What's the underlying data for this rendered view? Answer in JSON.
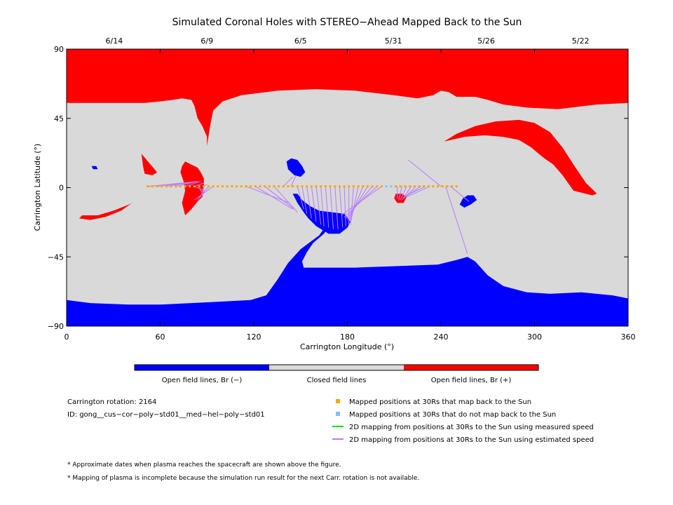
{
  "chart_data": {
    "type": "map",
    "title": "Simulated Coronal Holes with STEREO−Ahead Mapped Back to the Sun",
    "xlabel": "Carrington Longitude (°)",
    "ylabel": "Carrington Latitude (°)",
    "xlim": [
      0,
      360
    ],
    "ylim": [
      -90,
      90
    ],
    "x_ticks": [
      {
        "value": 0,
        "label": "0"
      },
      {
        "value": 60,
        "label": "60"
      },
      {
        "value": 120,
        "label": "120"
      },
      {
        "value": 180,
        "label": "180"
      },
      {
        "value": 240,
        "label": "240"
      },
      {
        "value": 300,
        "label": "300"
      },
      {
        "value": 360,
        "label": "360"
      }
    ],
    "y_ticks": [
      {
        "value": 90,
        "label": "90"
      },
      {
        "value": 45,
        "label": "45"
      },
      {
        "value": 0,
        "label": "0"
      },
      {
        "value": -45,
        "label": "−45"
      },
      {
        "value": -90,
        "label": "−90"
      }
    ],
    "top_dates": [
      {
        "lon": 30.5,
        "label": "6/14"
      },
      {
        "lon": 90,
        "label": "6/9"
      },
      {
        "lon": 150,
        "label": "6/5"
      },
      {
        "lon": 209.5,
        "label": "5/31"
      },
      {
        "lon": 269,
        "label": "5/26"
      },
      {
        "lon": 329.5,
        "label": "5/22"
      }
    ],
    "colors": {
      "open_negative": "#0000ff",
      "closed": "#d9d9d9",
      "open_positive": "#ff0000",
      "mapped": "#ffa500",
      "unmapped": "#80c0ff",
      "measured_speed": "#00e000",
      "estimated_speed": "#b57bff"
    },
    "colorbar_labels": [
      "Open field lines, Br (−)",
      "Closed field lines",
      "Open field lines, Br (+)"
    ],
    "regions": {
      "south_polar_negative": [
        [
          0,
          -73
        ],
        [
          15,
          -75
        ],
        [
          40,
          -76
        ],
        [
          60,
          -76
        ],
        [
          80,
          -75
        ],
        [
          100,
          -74
        ],
        [
          118,
          -73
        ],
        [
          128,
          -70
        ],
        [
          135,
          -60
        ],
        [
          142,
          -49
        ],
        [
          150,
          -40
        ],
        [
          162,
          -31
        ],
        [
          166,
          -25
        ],
        [
          169,
          -24
        ],
        [
          165,
          -30
        ],
        [
          158,
          -36
        ],
        [
          154,
          -42
        ],
        [
          151,
          -48
        ],
        [
          152,
          -52
        ],
        [
          166,
          -52
        ],
        [
          185,
          -52
        ],
        [
          212,
          -51
        ],
        [
          238,
          -50
        ],
        [
          250,
          -47
        ],
        [
          257,
          -45
        ],
        [
          262,
          -48
        ],
        [
          270,
          -57
        ],
        [
          280,
          -64
        ],
        [
          295,
          -68
        ],
        [
          310,
          -69
        ],
        [
          330,
          -68
        ],
        [
          350,
          -70
        ],
        [
          360,
          -72
        ],
        [
          360,
          -90
        ],
        [
          0,
          -90
        ]
      ],
      "negative_tongue": [
        [
          145,
          -4
        ],
        [
          148,
          -10
        ],
        [
          152,
          -16
        ],
        [
          155,
          -20
        ],
        [
          160,
          -25
        ],
        [
          168,
          -30
        ],
        [
          175,
          -30
        ],
        [
          180,
          -26
        ],
        [
          182,
          -22
        ],
        [
          178,
          -17
        ],
        [
          170,
          -16
        ],
        [
          162,
          -15
        ],
        [
          156,
          -12
        ],
        [
          151,
          -8
        ],
        [
          148,
          -4
        ]
      ],
      "negative_blob_center": [
        [
          141,
          17
        ],
        [
          144,
          19
        ],
        [
          148,
          18
        ],
        [
          151,
          14
        ],
        [
          153,
          10
        ],
        [
          150,
          7
        ],
        [
          146,
          8
        ],
        [
          142,
          12
        ]
      ],
      "negative_blob_left": [
        [
          16,
          14
        ],
        [
          19,
          14
        ],
        [
          20,
          12
        ],
        [
          17,
          12
        ]
      ],
      "negative_blob_right": [
        [
          254,
          -7
        ],
        [
          257,
          -5
        ],
        [
          261,
          -5
        ],
        [
          263,
          -8
        ],
        [
          259,
          -11
        ],
        [
          255,
          -13
        ],
        [
          252,
          -11
        ]
      ],
      "north_polar_positive": [
        [
          0,
          55
        ],
        [
          25,
          55
        ],
        [
          50,
          55
        ],
        [
          60,
          56
        ],
        [
          68,
          57
        ],
        [
          74,
          58
        ],
        [
          80,
          57
        ],
        [
          82,
          53
        ],
        [
          84,
          45
        ],
        [
          87,
          40
        ],
        [
          90,
          33
        ],
        [
          90,
          27
        ],
        [
          92,
          40
        ],
        [
          94,
          50
        ],
        [
          100,
          56
        ],
        [
          112,
          60
        ],
        [
          135,
          63
        ],
        [
          160,
          64
        ],
        [
          185,
          63
        ],
        [
          210,
          60
        ],
        [
          225,
          58
        ],
        [
          235,
          60
        ],
        [
          240,
          63
        ],
        [
          245,
          62
        ],
        [
          250,
          59
        ],
        [
          262,
          59
        ],
        [
          270,
          57
        ],
        [
          280,
          54
        ],
        [
          295,
          52
        ],
        [
          315,
          51
        ],
        [
          340,
          54
        ],
        [
          360,
          55
        ],
        [
          360,
          90
        ],
        [
          0,
          90
        ]
      ],
      "positive_tongue_right": [
        [
          242,
          30
        ],
        [
          250,
          35
        ],
        [
          262,
          40
        ],
        [
          275,
          43
        ],
        [
          290,
          44
        ],
        [
          300,
          42
        ],
        [
          310,
          36
        ],
        [
          318,
          26
        ],
        [
          325,
          15
        ],
        [
          333,
          3
        ],
        [
          340,
          -4
        ],
        [
          337,
          -5
        ],
        [
          325,
          -2
        ],
        [
          318,
          8
        ],
        [
          312,
          15
        ],
        [
          305,
          20
        ],
        [
          298,
          26
        ],
        [
          290,
          31
        ],
        [
          280,
          33
        ],
        [
          268,
          34
        ],
        [
          255,
          33
        ]
      ],
      "positive_blob_mid": [
        [
          76,
          17
        ],
        [
          80,
          15
        ],
        [
          84,
          13
        ],
        [
          86,
          10
        ],
        [
          88,
          6
        ],
        [
          88,
          0
        ],
        [
          87,
          -6
        ],
        [
          84,
          -9
        ],
        [
          80,
          -14
        ],
        [
          76,
          -18
        ],
        [
          74,
          -10
        ],
        [
          76,
          -2
        ],
        [
          75,
          4
        ],
        [
          73,
          10
        ],
        [
          74,
          14
        ]
      ],
      "positive_patch_left": [
        [
          48,
          22
        ],
        [
          53,
          16
        ],
        [
          58,
          10
        ],
        [
          55,
          8
        ],
        [
          50,
          9
        ],
        [
          49,
          14
        ]
      ],
      "positive_streak_low": [
        [
          8,
          -20
        ],
        [
          15,
          -21
        ],
        [
          25,
          -19
        ],
        [
          35,
          -15
        ],
        [
          42,
          -10
        ],
        [
          40,
          -11
        ],
        [
          30,
          -15
        ],
        [
          20,
          -18
        ],
        [
          10,
          -18
        ]
      ],
      "positive_small_right": [
        [
          211,
          -4
        ],
        [
          215,
          -4
        ],
        [
          218,
          -6
        ],
        [
          216,
          -10
        ],
        [
          212,
          -10
        ],
        [
          210,
          -7
        ]
      ]
    },
    "mapped_positions": {
      "lat": 0.8,
      "start_lon": 52,
      "step": 3,
      "count": 67,
      "unmapped_from": 204,
      "unmapped_to": 210
    },
    "mapping_lines": [
      [
        52,
        0.8,
        84,
        4
      ],
      [
        58,
        0.8,
        84,
        4
      ],
      [
        64,
        0.8,
        84,
        4
      ],
      [
        70,
        0.8,
        84,
        4
      ],
      [
        76,
        0.8,
        86,
        4
      ],
      [
        82,
        0.8,
        88,
        3
      ],
      [
        87,
        0.8,
        90,
        2
      ],
      [
        82,
        0.8,
        88,
        -2
      ],
      [
        85,
        0.8,
        87,
        -4
      ],
      [
        88,
        0.8,
        86,
        -6
      ],
      [
        91,
        0.8,
        84,
        -8
      ],
      [
        94,
        0.8,
        82,
        -8
      ],
      [
        115,
        0.8,
        143,
        -10
      ],
      [
        121,
        0.8,
        145,
        -14
      ],
      [
        127,
        0.8,
        146,
        -14
      ],
      [
        133,
        0.8,
        148,
        -16
      ],
      [
        139,
        0.8,
        145,
        7
      ],
      [
        144,
        0.8,
        147,
        8
      ],
      [
        148,
        0.8,
        152,
        -14
      ],
      [
        151,
        0.8,
        154,
        -17
      ],
      [
        154,
        0.8,
        157,
        -20
      ],
      [
        157,
        0.8,
        160,
        -22
      ],
      [
        160,
        0.8,
        163,
        -24
      ],
      [
        163,
        0.8,
        165,
        -25
      ],
      [
        166,
        0.8,
        168,
        -26
      ],
      [
        169,
        0.8,
        171,
        -27
      ],
      [
        172,
        0.8,
        174,
        -27
      ],
      [
        175,
        0.8,
        177,
        -26
      ],
      [
        178,
        0.8,
        179,
        -25
      ],
      [
        181,
        0.8,
        181,
        -24
      ],
      [
        184,
        0.8,
        182,
        -24
      ],
      [
        187,
        0.8,
        182,
        -23
      ],
      [
        190,
        0.8,
        181,
        -22
      ],
      [
        193,
        0.8,
        180,
        -21
      ],
      [
        196,
        0.8,
        179,
        -20
      ],
      [
        199,
        0.8,
        178,
        -19
      ],
      [
        202,
        0.8,
        176,
        -18
      ],
      [
        212,
        0.8,
        212,
        -7
      ],
      [
        215,
        0.8,
        213,
        -8
      ],
      [
        218,
        0.8,
        214,
        -8
      ],
      [
        221,
        0.8,
        215,
        -8
      ],
      [
        224,
        0.8,
        216,
        -7
      ],
      [
        227,
        0.8,
        217,
        -6
      ],
      [
        230,
        0.8,
        216,
        -6
      ],
      [
        233,
        0.8,
        218,
        -6
      ],
      [
        240,
        0.8,
        219,
        18
      ],
      [
        243,
        0.8,
        257,
        -43
      ],
      [
        246,
        0.8,
        258,
        -9
      ]
    ]
  },
  "legend": {
    "carrington_rotation": "Carrington rotation: 2164",
    "model_id": "ID: gong__cus−cor−poly−std01__med−hel−poly−std01",
    "mapped": "Mapped positions at 30Rs that map back to the Sun",
    "unmapped": "Mapped positions at 30Rs that do not map back to the Sun",
    "measured": "2D mapping from positions at 30Rs to the Sun using measured speed",
    "estimated": "2D mapping from positions at 30Rs to the Sun using estimated speed"
  },
  "notes": [
    "* Approximate dates when plasma reaches the spacecraft are shown above the figure.",
    "* Mapping of plasma is incomplete because the simulation run result for the next Carr. rotation is not available."
  ]
}
